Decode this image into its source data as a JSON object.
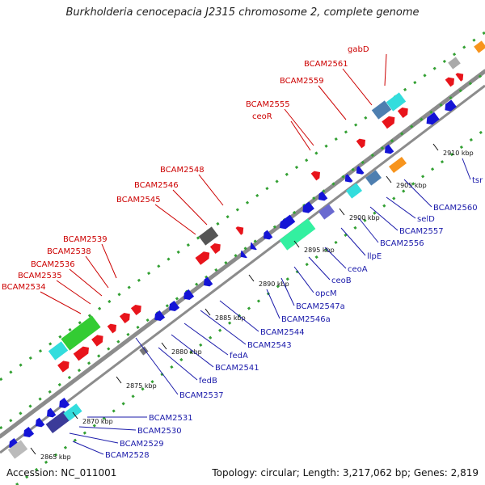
{
  "title": "Burkholderia cenocepacia J2315 chromosome 2, complete genome",
  "footer": {
    "accession": "Accession: NC_011001",
    "summary": "Topology: circular; Length: 3,217,062 bp; Genes: 2,819"
  },
  "kbp_ticks": [
    "2865 kbp",
    "2870 kbp",
    "2875 kbp",
    "2880 kbp",
    "2885 kbp",
    "2890 kbp",
    "2895 kbp",
    "2900 kbp",
    "2905 kbp",
    "2910 kbp"
  ],
  "top_labels": [
    "BCAM2534",
    "BCAM2535",
    "BCAM2536",
    "BCAM2538",
    "BCAM2539",
    "BCAM2545",
    "BCAM2546",
    "BCAM2548",
    "ceoR",
    "BCAM2555",
    "BCAM2559",
    "BCAM2561",
    "gabD"
  ],
  "bottom_labels": [
    "BCAM2528",
    "BCAM2529",
    "BCAM2530",
    "BCAM2531",
    "BCAM2537",
    "fedB",
    "BCAM2541",
    "fedA",
    "BCAM2543",
    "BCAM2544",
    "BCAM2546a",
    "BCAM2547a",
    "opcM",
    "ceoB",
    "ceoA",
    "llpE",
    "BCAM2556",
    "BCAM2557",
    "selD",
    "BCAM2560",
    "tsr"
  ],
  "colors": {
    "top_label": "#cc0000",
    "bottom_label": "#1a1aaa",
    "forward_gene": "#e8141b",
    "reverse_gene": "#1414d6",
    "backbone": "#8c8c8c",
    "dots": "#33a033"
  }
}
